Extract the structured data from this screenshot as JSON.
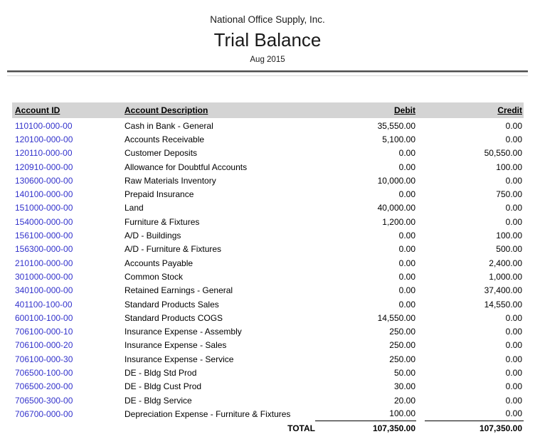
{
  "report": {
    "company": "National Office Supply, Inc.",
    "title": "Trial Balance",
    "period": "Aug 2015"
  },
  "table": {
    "columns": {
      "account_id": "Account ID",
      "description": "Account Description",
      "debit": "Debit",
      "credit": "Credit"
    },
    "rows": [
      {
        "account_id": "110100-000-00",
        "description": "Cash in Bank - General",
        "debit": "35,550.00",
        "credit": "0.00"
      },
      {
        "account_id": "120100-000-00",
        "description": "Accounts Receivable",
        "debit": "5,100.00",
        "credit": "0.00"
      },
      {
        "account_id": "120110-000-00",
        "description": "Customer Deposits",
        "debit": "0.00",
        "credit": "50,550.00"
      },
      {
        "account_id": "120910-000-00",
        "description": "Allowance for Doubtful Accounts",
        "debit": "0.00",
        "credit": "100.00"
      },
      {
        "account_id": "130600-000-00",
        "description": "Raw Materials Inventory",
        "debit": "10,000.00",
        "credit": "0.00"
      },
      {
        "account_id": "140100-000-00",
        "description": "Prepaid Insurance",
        "debit": "0.00",
        "credit": "750.00"
      },
      {
        "account_id": "151000-000-00",
        "description": "Land",
        "debit": "40,000.00",
        "credit": "0.00"
      },
      {
        "account_id": "154000-000-00",
        "description": "Furniture & Fixtures",
        "debit": "1,200.00",
        "credit": "0.00"
      },
      {
        "account_id": "156100-000-00",
        "description": "A/D - Buildings",
        "debit": "0.00",
        "credit": "100.00"
      },
      {
        "account_id": "156300-000-00",
        "description": "A/D - Furniture & Fixtures",
        "debit": "0.00",
        "credit": "500.00"
      },
      {
        "account_id": "210100-000-00",
        "description": "Accounts Payable",
        "debit": "0.00",
        "credit": "2,400.00"
      },
      {
        "account_id": "301000-000-00",
        "description": "Common Stock",
        "debit": "0.00",
        "credit": "1,000.00"
      },
      {
        "account_id": "340100-000-00",
        "description": "Retained Earnings - General",
        "debit": "0.00",
        "credit": "37,400.00"
      },
      {
        "account_id": "401100-100-00",
        "description": "Standard Products Sales",
        "debit": "0.00",
        "credit": "14,550.00"
      },
      {
        "account_id": "600100-100-00",
        "description": "Standard Products COGS",
        "debit": "14,550.00",
        "credit": "0.00"
      },
      {
        "account_id": "706100-000-10",
        "description": "Insurance Expense - Assembly",
        "debit": "250.00",
        "credit": "0.00"
      },
      {
        "account_id": "706100-000-20",
        "description": "Insurance Expense - Sales",
        "debit": "250.00",
        "credit": "0.00"
      },
      {
        "account_id": "706100-000-30",
        "description": "Insurance Expense - Service",
        "debit": "250.00",
        "credit": "0.00"
      },
      {
        "account_id": "706500-100-00",
        "description": "DE - Bldg Std Prod",
        "debit": "50.00",
        "credit": "0.00"
      },
      {
        "account_id": "706500-200-00",
        "description": "DE - Bldg Cust Prod",
        "debit": "30.00",
        "credit": "0.00"
      },
      {
        "account_id": "706500-300-00",
        "description": "DE - Bldg Service",
        "debit": "20.00",
        "credit": "0.00"
      },
      {
        "account_id": "706700-000-00",
        "description": "Depreciation Expense - Furniture & Fixtures",
        "debit": "100.00",
        "credit": "0.00"
      }
    ],
    "total": {
      "label": "TOTAL",
      "debit": "107,350.00",
      "credit": "107,350.00"
    }
  },
  "colors": {
    "account_id_link": "#3333cc",
    "header_bg": "#d4d4d4"
  }
}
